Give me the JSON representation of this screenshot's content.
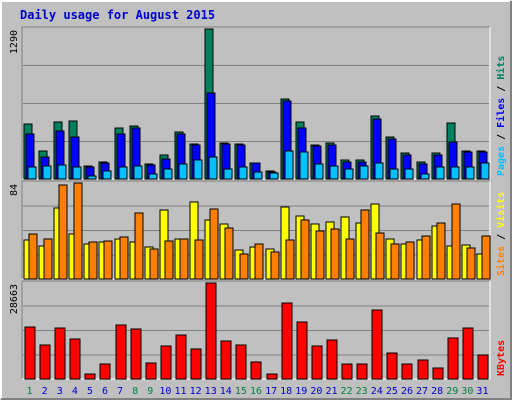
{
  "title": "Daily usage for August 2015",
  "colors": {
    "frame": "#c0c0c0",
    "plot_bg": "#c0c0c0",
    "gridline": "#808080",
    "title": "#0000cc",
    "hits": "#00805c",
    "files": "#0000ff",
    "pages": "#00c0ff",
    "visits": "#ffff00",
    "sites": "#ff8000",
    "kbytes": "#ff0000",
    "weekday_label": "#0000cc",
    "weekend_label": "#008040"
  },
  "chart_data": [
    {
      "type": "bar",
      "panel": "hits-files-pages",
      "categories": [
        "1",
        "2",
        "3",
        "4",
        "5",
        "6",
        "7",
        "8",
        "9",
        "10",
        "11",
        "12",
        "13",
        "14",
        "15",
        "16",
        "17",
        "18",
        "19",
        "20",
        "21",
        "22",
        "23",
        "24",
        "25",
        "26",
        "27",
        "28",
        "29",
        "30",
        "31"
      ],
      "ylabel": "Pages / Files / Hits",
      "ymax_label": "1290",
      "ylim": [
        0,
        1290
      ],
      "series": [
        {
          "name": "Hits",
          "values": [
            470,
            240,
            490,
            500,
            110,
            150,
            440,
            460,
            130,
            210,
            400,
            300,
            1290,
            310,
            300,
            140,
            70,
            690,
            490,
            290,
            310,
            160,
            160,
            540,
            360,
            220,
            150,
            220,
            480,
            240,
            240
          ]
        },
        {
          "name": "Files",
          "values": [
            390,
            190,
            410,
            360,
            100,
            140,
            390,
            440,
            120,
            170,
            390,
            290,
            740,
            300,
            290,
            140,
            60,
            670,
            440,
            280,
            290,
            150,
            150,
            520,
            340,
            210,
            130,
            210,
            320,
            230,
            230
          ]
        },
        {
          "name": "Pages",
          "values": [
            100,
            110,
            120,
            100,
            30,
            70,
            100,
            110,
            40,
            90,
            130,
            160,
            190,
            90,
            100,
            60,
            50,
            240,
            230,
            130,
            110,
            90,
            110,
            140,
            90,
            90,
            40,
            100,
            100,
            100,
            140
          ]
        }
      ]
    },
    {
      "type": "bar",
      "panel": "visits-sites",
      "categories": [
        "1",
        "2",
        "3",
        "4",
        "5",
        "6",
        "7",
        "8",
        "9",
        "10",
        "11",
        "12",
        "13",
        "14",
        "15",
        "16",
        "17",
        "18",
        "19",
        "20",
        "21",
        "22",
        "23",
        "24",
        "25",
        "26",
        "27",
        "28",
        "29",
        "30",
        "31"
      ],
      "ylabel": "Sites / Visits",
      "ymax_label": "84",
      "ylim": [
        0,
        84
      ],
      "series": [
        {
          "name": "Visits",
          "values": [
            34,
            29,
            62,
            39,
            31,
            32,
            35,
            32,
            28,
            60,
            35,
            67,
            52,
            48,
            25,
            28,
            26,
            63,
            55,
            48,
            50,
            54,
            49,
            66,
            35,
            31,
            34,
            46,
            29,
            30,
            22
          ]
        },
        {
          "name": "Sites",
          "values": [
            39,
            35,
            82,
            84,
            32,
            33,
            37,
            58,
            26,
            33,
            35,
            34,
            61,
            45,
            22,
            31,
            24,
            34,
            52,
            42,
            44,
            35,
            60,
            40,
            31,
            32,
            38,
            49,
            66,
            27,
            38
          ]
        }
      ]
    },
    {
      "type": "bar",
      "panel": "kbytes",
      "categories": [
        "1",
        "2",
        "3",
        "4",
        "5",
        "6",
        "7",
        "8",
        "9",
        "10",
        "11",
        "12",
        "13",
        "14",
        "15",
        "16",
        "17",
        "18",
        "19",
        "20",
        "21",
        "22",
        "23",
        "24",
        "25",
        "26",
        "27",
        "28",
        "29",
        "30",
        "31"
      ],
      "ylabel": "KBytes",
      "ymax_label": "28663",
      "ylim": [
        0,
        28663
      ],
      "series": [
        {
          "name": "KBytes",
          "values": [
            15500,
            10300,
            15300,
            11900,
            1600,
            4500,
            16200,
            14800,
            4900,
            9800,
            13000,
            9100,
            28663,
            11200,
            10300,
            5000,
            1600,
            22600,
            16900,
            9800,
            11700,
            4400,
            4400,
            20600,
            7700,
            4600,
            5800,
            3400,
            12100,
            15300,
            7100
          ]
        }
      ]
    }
  ],
  "weekend_days": [
    1,
    8,
    9,
    15,
    16,
    22,
    23,
    29,
    30
  ]
}
